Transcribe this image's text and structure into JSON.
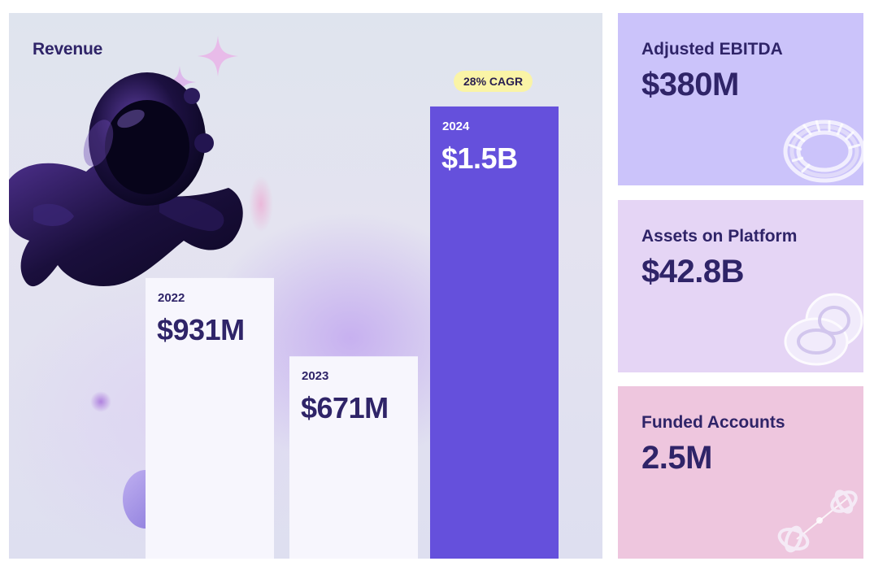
{
  "revenue_panel": {
    "title": "Revenue",
    "cagr_badge": "28% CAGR"
  },
  "chart_data": {
    "type": "bar",
    "title": "Revenue",
    "categories": [
      "2022",
      "2023",
      "2024"
    ],
    "value_labels": [
      "$931M",
      "$671M",
      "$1.5B"
    ],
    "values": [
      931,
      671,
      1500
    ],
    "unit": "$M",
    "annotation": "28% CAGR",
    "bar_colors": [
      "#f7f6fd",
      "#f7f6fd",
      "#6550dc"
    ],
    "label_colors": [
      "#2f2468",
      "#2f2468",
      "#ffffff"
    ],
    "grid": false
  },
  "kpis": [
    {
      "label": "Adjusted EBITDA",
      "value": "$380M",
      "background": "#cbc3fa"
    },
    {
      "label": "Assets on Platform",
      "value": "$42.8B",
      "background": "#e5d5f5"
    },
    {
      "label": "Funded Accounts",
      "value": "2.5M",
      "background": "#eec6de"
    }
  ],
  "decor": {
    "illustration": "astronaut-icon",
    "accent_purple": "#6550dc",
    "text_dark": "#2f2468",
    "badge_yellow": "#faf4a6"
  }
}
